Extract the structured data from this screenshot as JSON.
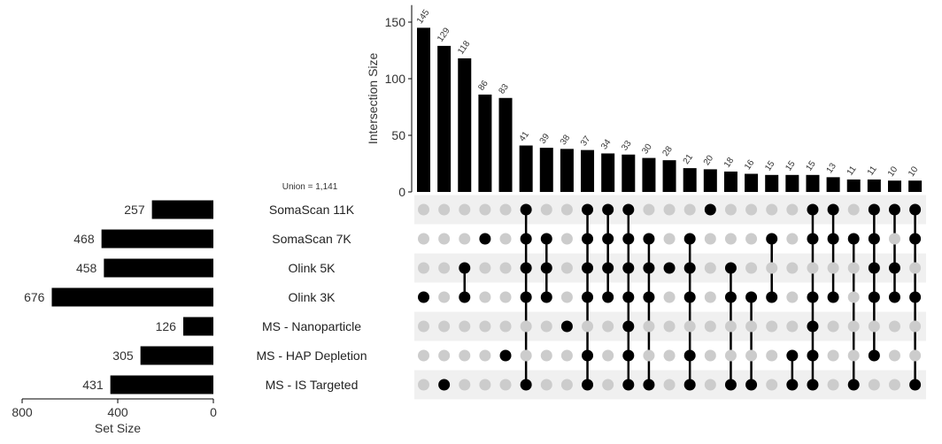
{
  "chart_data": {
    "type": "upset",
    "union_label": "Union = ",
    "union_value": "1,141",
    "intersection_axis": {
      "label": "Intersection Size",
      "ticks": [
        0,
        50,
        100,
        150
      ],
      "ylim": [
        0,
        165
      ]
    },
    "set_size_axis": {
      "label": "Set Size",
      "ticks": [
        800,
        400,
        0
      ],
      "xlim": [
        0,
        800
      ]
    },
    "sets": [
      {
        "name": "SomaScan 11K",
        "size": 257
      },
      {
        "name": "SomaScan 7K",
        "size": 468
      },
      {
        "name": "Olink 5K",
        "size": 458
      },
      {
        "name": "Olink 3K",
        "size": 676
      },
      {
        "name": "MS - Nanoparticle",
        "size": 126
      },
      {
        "name": "MS - HAP Depletion",
        "size": 305
      },
      {
        "name": "MS - IS Targeted",
        "size": 431
      }
    ],
    "intersections": [
      {
        "size": 145,
        "sets": [
          3
        ]
      },
      {
        "size": 129,
        "sets": [
          6
        ]
      },
      {
        "size": 118,
        "sets": [
          2,
          3
        ]
      },
      {
        "size": 86,
        "sets": [
          1
        ]
      },
      {
        "size": 83,
        "sets": [
          5
        ]
      },
      {
        "size": 41,
        "sets": [
          0,
          1,
          2,
          3,
          6
        ]
      },
      {
        "size": 39,
        "sets": [
          1,
          2,
          3
        ]
      },
      {
        "size": 38,
        "sets": [
          4
        ]
      },
      {
        "size": 37,
        "sets": [
          0,
          1,
          2,
          3,
          5,
          6
        ]
      },
      {
        "size": 34,
        "sets": [
          0,
          1,
          2,
          3
        ]
      },
      {
        "size": 33,
        "sets": [
          0,
          1,
          2,
          3,
          4,
          5,
          6
        ]
      },
      {
        "size": 30,
        "sets": [
          1,
          2,
          3,
          6
        ]
      },
      {
        "size": 28,
        "sets": [
          2
        ]
      },
      {
        "size": 21,
        "sets": [
          1,
          2,
          3,
          5,
          6
        ]
      },
      {
        "size": 20,
        "sets": [
          0
        ]
      },
      {
        "size": 18,
        "sets": [
          2,
          3,
          6
        ]
      },
      {
        "size": 16,
        "sets": [
          3,
          6
        ]
      },
      {
        "size": 15,
        "sets": [
          1,
          3
        ]
      },
      {
        "size": 15,
        "sets": [
          5,
          6
        ]
      },
      {
        "size": 15,
        "sets": [
          0,
          1,
          3,
          4,
          5,
          6
        ]
      },
      {
        "size": 13,
        "sets": [
          0,
          1,
          3
        ]
      },
      {
        "size": 11,
        "sets": [
          1,
          6
        ]
      },
      {
        "size": 11,
        "sets": [
          0,
          1,
          2,
          3,
          5
        ]
      },
      {
        "size": 10,
        "sets": [
          0,
          2,
          3
        ]
      },
      {
        "size": 10,
        "sets": [
          0,
          1,
          3,
          6
        ]
      }
    ],
    "colors": {
      "bar": "#000000",
      "dot_active": "#000000",
      "dot_inactive": "#cccccc",
      "stripe": "#f0f0f0"
    }
  }
}
